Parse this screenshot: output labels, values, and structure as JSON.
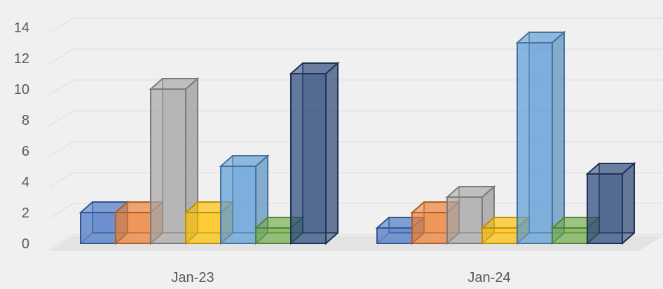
{
  "chart_data": {
    "type": "bar",
    "title": "",
    "xlabel": "",
    "ylabel": "",
    "categories": [
      "Jan-23",
      "Jan-24"
    ],
    "ylim": [
      0,
      14
    ],
    "yticks": [
      0,
      2,
      4,
      6,
      8,
      10,
      12,
      14
    ],
    "grid": true,
    "legend": "none",
    "style": "3d-clustered-column",
    "series": [
      {
        "color": "#4472c4",
        "values": [
          2,
          1
        ]
      },
      {
        "color": "#ed7d31",
        "values": [
          2,
          2
        ]
      },
      {
        "color": "#a5a5a5",
        "values": [
          10,
          3
        ]
      },
      {
        "color": "#ffc000",
        "values": [
          2,
          1
        ]
      },
      {
        "color": "#5b9bd5",
        "values": [
          5,
          13
        ]
      },
      {
        "color": "#70ad47",
        "values": [
          1,
          1
        ]
      },
      {
        "color": "#264478",
        "values": [
          11,
          4.5
        ]
      }
    ]
  }
}
